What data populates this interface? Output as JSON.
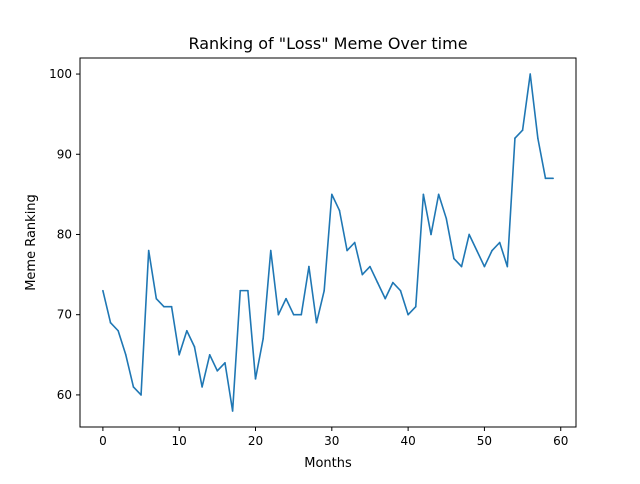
{
  "chart_data": {
    "type": "line",
    "title": "Ranking of \"Loss\" Meme Over time",
    "xlabel": "Months",
    "ylabel": "Meme Ranking",
    "xlim": [
      -3,
      62
    ],
    "ylim": [
      56,
      102
    ],
    "xticks": [
      0,
      10,
      20,
      30,
      40,
      50,
      60
    ],
    "yticks": [
      60,
      70,
      80,
      90,
      100
    ],
    "grid": false,
    "legend": "none",
    "series": [
      {
        "color": "#1f77b4",
        "x": [
          0,
          1,
          2,
          3,
          4,
          5,
          6,
          7,
          8,
          9,
          10,
          11,
          12,
          13,
          14,
          15,
          16,
          17,
          18,
          19,
          20,
          21,
          22,
          23,
          24,
          25,
          26,
          27,
          28,
          29,
          30,
          31,
          32,
          33,
          34,
          35,
          36,
          37,
          38,
          39,
          40,
          41,
          42,
          43,
          44,
          45,
          46,
          47,
          48,
          49,
          50,
          51,
          52,
          53,
          54,
          55,
          56,
          57,
          58,
          59
        ],
        "values": [
          73,
          69,
          68,
          65,
          61,
          60,
          78,
          72,
          71,
          71,
          65,
          68,
          66,
          61,
          65,
          63,
          64,
          58,
          73,
          73,
          62,
          67,
          78,
          70,
          72,
          70,
          70,
          76,
          69,
          73,
          85,
          83,
          78,
          79,
          75,
          76,
          74,
          72,
          74,
          73,
          70,
          71,
          85,
          80,
          85,
          82,
          77,
          76,
          80,
          78,
          76,
          78,
          79,
          76,
          92,
          93,
          100,
          92,
          87,
          87
        ]
      }
    ]
  }
}
